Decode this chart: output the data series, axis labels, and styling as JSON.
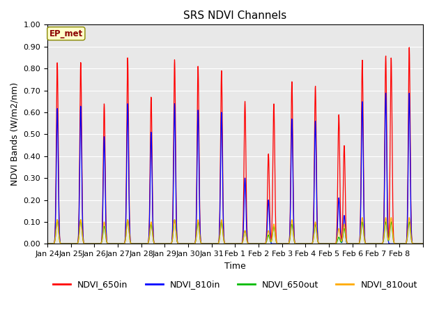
{
  "title": "SRS NDVI Channels",
  "xlabel": "Time",
  "ylabel": "NDVI Bands (W/m2/nm)",
  "ylim": [
    0.0,
    1.0
  ],
  "annotation_text": "EP_met",
  "legend_entries": [
    "NDVI_650in",
    "NDVI_810in",
    "NDVI_650out",
    "NDVI_810out"
  ],
  "legend_colors": [
    "#ff0000",
    "#0000ff",
    "#00bb00",
    "#ffaa00"
  ],
  "tick_labels": [
    "Jan 24",
    "Jan 25",
    "Jan 26",
    "Jan 27",
    "Jan 28",
    "Jan 29",
    "Jan 30",
    "Jan 31",
    "Feb 1",
    "Feb 2",
    "Feb 3",
    "Feb 4",
    "Feb 5",
    "Feb 6",
    "Feb 7",
    "Feb 8"
  ],
  "background_color": "#e8e8e8",
  "figsize": [
    6.4,
    4.8
  ],
  "dpi": 100,
  "days_data": [
    {
      "p1_650in": 0.83,
      "p1_810in": 0.62,
      "p1_650out": 0.11,
      "p1_810out": 0.11,
      "p2_650in": 0.0,
      "p2_810in": 0.0,
      "p2_650out": 0.0,
      "p2_810out": 0.0
    },
    {
      "p1_650in": 0.83,
      "p1_810in": 0.63,
      "p1_650out": 0.11,
      "p1_810out": 0.11,
      "p2_650in": 0.0,
      "p2_810in": 0.0,
      "p2_650out": 0.0,
      "p2_810out": 0.0
    },
    {
      "p1_650in": 0.64,
      "p1_810in": 0.49,
      "p1_650out": 0.08,
      "p1_810out": 0.1,
      "p2_650in": 0.0,
      "p2_810in": 0.0,
      "p2_650out": 0.0,
      "p2_810out": 0.0
    },
    {
      "p1_650in": 0.85,
      "p1_810in": 0.64,
      "p1_650out": 0.11,
      "p1_810out": 0.11,
      "p2_650in": 0.0,
      "p2_810in": 0.0,
      "p2_650out": 0.0,
      "p2_810out": 0.0
    },
    {
      "p1_650in": 0.67,
      "p1_810in": 0.51,
      "p1_650out": 0.09,
      "p1_810out": 0.1,
      "p2_650in": 0.0,
      "p2_810in": 0.0,
      "p2_650out": 0.0,
      "p2_810out": 0.0
    },
    {
      "p1_650in": 0.84,
      "p1_810in": 0.64,
      "p1_650out": 0.11,
      "p1_810out": 0.11,
      "p2_650in": 0.0,
      "p2_810in": 0.0,
      "p2_650out": 0.0,
      "p2_810out": 0.0
    },
    {
      "p1_650in": 0.81,
      "p1_810in": 0.61,
      "p1_650out": 0.1,
      "p1_810out": 0.11,
      "p2_650in": 0.0,
      "p2_810in": 0.0,
      "p2_650out": 0.0,
      "p2_810out": 0.0
    },
    {
      "p1_650in": 0.79,
      "p1_810in": 0.6,
      "p1_650out": 0.1,
      "p1_810out": 0.11,
      "p2_650in": 0.0,
      "p2_810in": 0.0,
      "p2_650out": 0.0,
      "p2_810out": 0.0
    },
    {
      "p1_650in": 0.65,
      "p1_810in": 0.3,
      "p1_650out": 0.06,
      "p1_810out": 0.06,
      "p2_650in": 0.0,
      "p2_810in": 0.0,
      "p2_650out": 0.0,
      "p2_810out": 0.0
    },
    {
      "p1_650in": 0.41,
      "p1_810in": 0.2,
      "p1_650out": 0.04,
      "p1_810out": 0.06,
      "p2_650in": 0.64,
      "p2_810in": 0.0,
      "p2_650out": 0.08,
      "p2_810out": 0.09
    },
    {
      "p1_650in": 0.74,
      "p1_810in": 0.57,
      "p1_650out": 0.09,
      "p1_810out": 0.11,
      "p2_650in": 0.0,
      "p2_810in": 0.0,
      "p2_650out": 0.0,
      "p2_810out": 0.0
    },
    {
      "p1_650in": 0.72,
      "p1_810in": 0.56,
      "p1_650out": 0.09,
      "p1_810out": 0.1,
      "p2_650in": 0.0,
      "p2_810in": 0.0,
      "p2_650out": 0.0,
      "p2_810out": 0.0
    },
    {
      "p1_650in": 0.59,
      "p1_810in": 0.21,
      "p1_650out": 0.03,
      "p1_810out": 0.07,
      "p2_650in": 0.45,
      "p2_810in": 0.13,
      "p2_650out": 0.07,
      "p2_810out": 0.09
    },
    {
      "p1_650in": 0.84,
      "p1_810in": 0.65,
      "p1_650out": 0.1,
      "p1_810out": 0.12,
      "p2_650in": 0.0,
      "p2_810in": 0.0,
      "p2_650out": 0.0,
      "p2_810out": 0.0
    },
    {
      "p1_650in": 0.86,
      "p1_810in": 0.69,
      "p1_650out": 0.1,
      "p1_810out": 0.12,
      "p2_650in": 0.85,
      "p2_810in": 0.0,
      "p2_650out": 0.1,
      "p2_810out": 0.12
    },
    {
      "p1_650in": 0.9,
      "p1_810in": 0.69,
      "p1_650out": 0.1,
      "p1_810out": 0.12,
      "p2_650in": 0.0,
      "p2_810in": 0.0,
      "p2_650out": 0.0,
      "p2_810out": 0.0
    }
  ]
}
